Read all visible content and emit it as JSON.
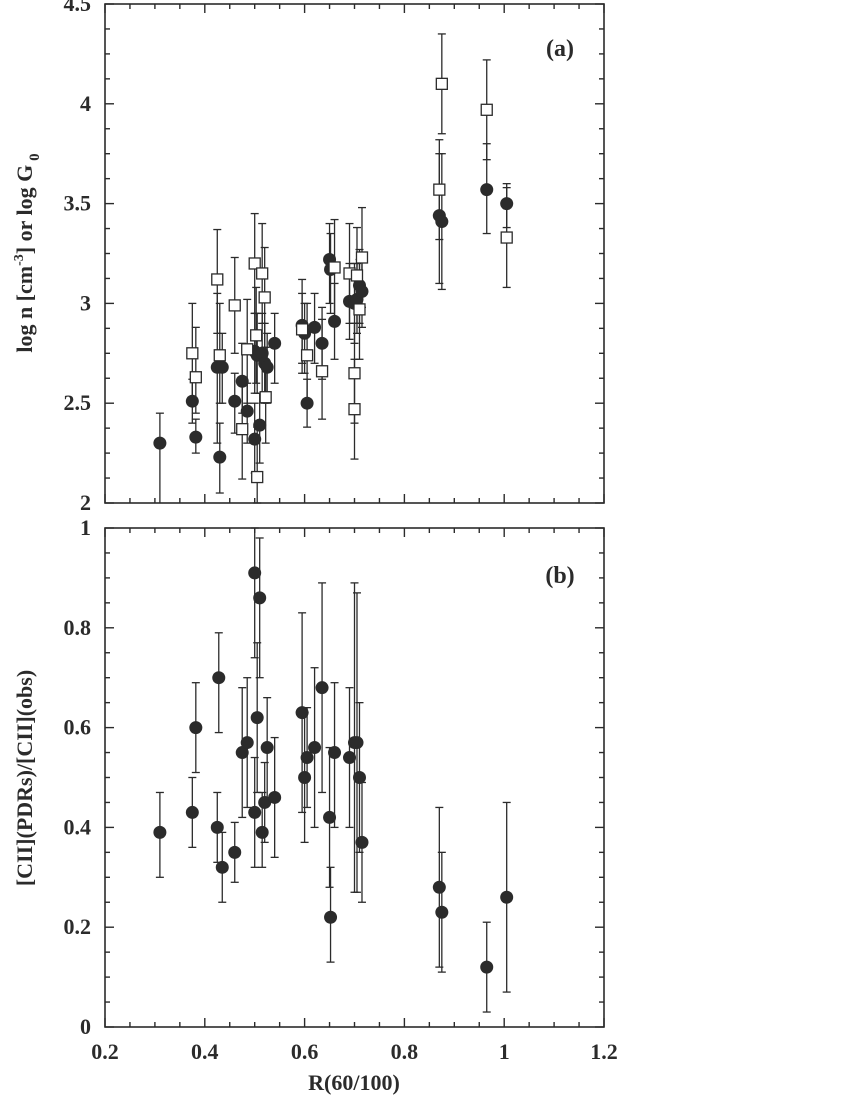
{
  "chart_data": [
    {
      "type": "scatter",
      "panel_tag": "(a)",
      "ylabel_main": "log n [cm",
      "ylabel_sup": "-3",
      "ylabel_mid": "] or log G",
      "ylabel_sub": "0",
      "xlim": [
        0.2,
        1.2
      ],
      "ylim": [
        2,
        4.5
      ],
      "yticks": [
        "2",
        "2.5",
        "3",
        "3.5",
        "4",
        "4.5"
      ],
      "grid": false,
      "series": [
        {
          "marker": "filled-circle",
          "points": [
            {
              "x": 0.31,
              "y": 2.3,
              "lo": 1.95,
              "hi": 2.45
            },
            {
              "x": 0.375,
              "y": 2.51,
              "lo": 2.4,
              "hi": 2.62
            },
            {
              "x": 0.382,
              "y": 2.33,
              "lo": 2.25,
              "hi": 2.42
            },
            {
              "x": 0.425,
              "y": 2.68,
              "lo": 2.3,
              "hi": 3.05
            },
            {
              "x": 0.43,
              "y": 2.23,
              "lo": 2.05,
              "hi": 2.4
            },
            {
              "x": 0.435,
              "y": 2.68,
              "lo": 2.5,
              "hi": 2.85
            },
            {
              "x": 0.46,
              "y": 2.51,
              "lo": 2.35,
              "hi": 2.65
            },
            {
              "x": 0.475,
              "y": 2.61,
              "lo": 2.45,
              "hi": 2.8
            },
            {
              "x": 0.485,
              "y": 2.46,
              "lo": 2.3,
              "hi": 2.6
            },
            {
              "x": 0.5,
              "y": 2.76,
              "lo": 2.55,
              "hi": 2.95
            },
            {
              "x": 0.5,
              "y": 2.32,
              "lo": 2.15,
              "hi": 2.5
            },
            {
              "x": 0.505,
              "y": 2.74,
              "lo": 2.55,
              "hi": 2.95
            },
            {
              "x": 0.51,
              "y": 2.39,
              "lo": 2.2,
              "hi": 2.55
            },
            {
              "x": 0.515,
              "y": 2.75,
              "lo": 2.55,
              "hi": 2.95
            },
            {
              "x": 0.52,
              "y": 2.7,
              "lo": 2.5,
              "hi": 2.9
            },
            {
              "x": 0.525,
              "y": 2.68,
              "lo": 2.5,
              "hi": 2.85
            },
            {
              "x": 0.54,
              "y": 2.8,
              "lo": 2.6,
              "hi": 2.95
            },
            {
              "x": 0.595,
              "y": 2.89,
              "lo": 2.7,
              "hi": 3.05
            },
            {
              "x": 0.6,
              "y": 2.85,
              "lo": 2.65,
              "hi": 3.0
            },
            {
              "x": 0.605,
              "y": 2.5,
              "lo": 2.38,
              "hi": 2.62
            },
            {
              "x": 0.62,
              "y": 2.88,
              "lo": 2.7,
              "hi": 3.05
            },
            {
              "x": 0.635,
              "y": 2.8,
              "lo": 2.62,
              "hi": 2.98
            },
            {
              "x": 0.65,
              "y": 3.22,
              "lo": 3.0,
              "hi": 3.4
            },
            {
              "x": 0.652,
              "y": 3.17,
              "lo": 2.95,
              "hi": 3.35
            },
            {
              "x": 0.66,
              "y": 2.91,
              "lo": 2.72,
              "hi": 3.1
            },
            {
              "x": 0.69,
              "y": 3.01,
              "lo": 2.82,
              "hi": 3.2
            },
            {
              "x": 0.7,
              "y": 3.0,
              "lo": 2.8,
              "hi": 3.2
            },
            {
              "x": 0.705,
              "y": 3.02,
              "lo": 2.85,
              "hi": 3.2
            },
            {
              "x": 0.71,
              "y": 3.09,
              "lo": 2.9,
              "hi": 3.27
            },
            {
              "x": 0.715,
              "y": 3.06,
              "lo": 2.88,
              "hi": 3.25
            },
            {
              "x": 0.87,
              "y": 3.44,
              "lo": 3.1,
              "hi": 3.75
            },
            {
              "x": 0.875,
              "y": 3.41,
              "lo": 3.07,
              "hi": 3.75
            },
            {
              "x": 0.965,
              "y": 3.57,
              "lo": 3.35,
              "hi": 3.8
            },
            {
              "x": 1.005,
              "y": 3.5,
              "lo": 3.38,
              "hi": 3.6
            }
          ]
        },
        {
          "marker": "open-square",
          "points": [
            {
              "x": 0.375,
              "y": 2.75,
              "lo": 2.5,
              "hi": 3.0
            },
            {
              "x": 0.382,
              "y": 2.63,
              "lo": 2.45,
              "hi": 2.88
            },
            {
              "x": 0.425,
              "y": 3.12,
              "lo": 2.85,
              "hi": 3.37
            },
            {
              "x": 0.43,
              "y": 2.74,
              "lo": 2.5,
              "hi": 3.0
            },
            {
              "x": 0.46,
              "y": 2.99,
              "lo": 2.75,
              "hi": 3.23
            },
            {
              "x": 0.475,
              "y": 2.37,
              "lo": 2.12,
              "hi": 2.62
            },
            {
              "x": 0.485,
              "y": 2.77,
              "lo": 2.5,
              "hi": 3.02
            },
            {
              "x": 0.5,
              "y": 3.2,
              "lo": 2.95,
              "hi": 3.45
            },
            {
              "x": 0.503,
              "y": 2.84,
              "lo": 2.6,
              "hi": 3.08
            },
            {
              "x": 0.505,
              "y": 2.13,
              "lo": 2.0,
              "hi": 2.38
            },
            {
              "x": 0.515,
              "y": 3.15,
              "lo": 2.9,
              "hi": 3.4
            },
            {
              "x": 0.52,
              "y": 3.03,
              "lo": 2.78,
              "hi": 3.28
            },
            {
              "x": 0.522,
              "y": 2.53,
              "lo": 2.3,
              "hi": 2.78
            },
            {
              "x": 0.595,
              "y": 2.87,
              "lo": 2.65,
              "hi": 3.12
            },
            {
              "x": 0.605,
              "y": 2.74,
              "lo": 2.5,
              "hi": 3.0
            },
            {
              "x": 0.635,
              "y": 2.66,
              "lo": 2.42,
              "hi": 2.92
            },
            {
              "x": 0.66,
              "y": 3.18,
              "lo": 2.93,
              "hi": 3.42
            },
            {
              "x": 0.69,
              "y": 3.15,
              "lo": 2.9,
              "hi": 3.4
            },
            {
              "x": 0.7,
              "y": 2.65,
              "lo": 2.4,
              "hi": 2.9
            },
            {
              "x": 0.7,
              "y": 2.47,
              "lo": 2.22,
              "hi": 2.72
            },
            {
              "x": 0.705,
              "y": 3.14,
              "lo": 2.9,
              "hi": 3.38
            },
            {
              "x": 0.71,
              "y": 2.97,
              "lo": 2.72,
              "hi": 3.22
            },
            {
              "x": 0.715,
              "y": 3.23,
              "lo": 2.98,
              "hi": 3.48
            },
            {
              "x": 0.87,
              "y": 3.57,
              "lo": 3.32,
              "hi": 3.82
            },
            {
              "x": 0.875,
              "y": 4.1,
              "lo": 3.85,
              "hi": 4.35
            },
            {
              "x": 0.965,
              "y": 3.97,
              "lo": 3.72,
              "hi": 4.22
            },
            {
              "x": 1.005,
              "y": 3.33,
              "lo": 3.08,
              "hi": 3.58
            }
          ]
        }
      ]
    },
    {
      "type": "scatter",
      "panel_tag": "(b)",
      "ylabel": "[CII](PDRs)/[CII](obs)",
      "xlabel": "R(60/100)",
      "xlim": [
        0.2,
        1.2
      ],
      "ylim": [
        0,
        1
      ],
      "xticks": [
        "0.2",
        "0.4",
        "0.6",
        "0.8",
        "1",
        "1.2"
      ],
      "yticks": [
        "0",
        "0.2",
        "0.4",
        "0.6",
        "0.8",
        "1"
      ],
      "grid": false,
      "series": [
        {
          "marker": "filled-circle",
          "points": [
            {
              "x": 0.31,
              "y": 0.39,
              "lo": 0.3,
              "hi": 0.47
            },
            {
              "x": 0.375,
              "y": 0.43,
              "lo": 0.36,
              "hi": 0.5
            },
            {
              "x": 0.382,
              "y": 0.6,
              "lo": 0.51,
              "hi": 0.69
            },
            {
              "x": 0.425,
              "y": 0.4,
              "lo": 0.33,
              "hi": 0.47
            },
            {
              "x": 0.428,
              "y": 0.7,
              "lo": 0.59,
              "hi": 0.79
            },
            {
              "x": 0.435,
              "y": 0.32,
              "lo": 0.25,
              "hi": 0.39
            },
            {
              "x": 0.46,
              "y": 0.35,
              "lo": 0.29,
              "hi": 0.41
            },
            {
              "x": 0.475,
              "y": 0.55,
              "lo": 0.42,
              "hi": 0.68
            },
            {
              "x": 0.485,
              "y": 0.57,
              "lo": 0.44,
              "hi": 0.7
            },
            {
              "x": 0.5,
              "y": 0.91,
              "lo": 0.74,
              "hi": 1.0
            },
            {
              "x": 0.5,
              "y": 0.43,
              "lo": 0.32,
              "hi": 0.54
            },
            {
              "x": 0.505,
              "y": 0.62,
              "lo": 0.47,
              "hi": 0.77
            },
            {
              "x": 0.51,
              "y": 0.86,
              "lo": 0.7,
              "hi": 0.98
            },
            {
              "x": 0.515,
              "y": 0.39,
              "lo": 0.32,
              "hi": 0.47
            },
            {
              "x": 0.52,
              "y": 0.45,
              "lo": 0.37,
              "hi": 0.53
            },
            {
              "x": 0.525,
              "y": 0.56,
              "lo": 0.46,
              "hi": 0.66
            },
            {
              "x": 0.54,
              "y": 0.46,
              "lo": 0.34,
              "hi": 0.58
            },
            {
              "x": 0.595,
              "y": 0.63,
              "lo": 0.43,
              "hi": 0.83
            },
            {
              "x": 0.6,
              "y": 0.5,
              "lo": 0.37,
              "hi": 0.63
            },
            {
              "x": 0.605,
              "y": 0.54,
              "lo": 0.44,
              "hi": 0.64
            },
            {
              "x": 0.62,
              "y": 0.56,
              "lo": 0.4,
              "hi": 0.72
            },
            {
              "x": 0.635,
              "y": 0.68,
              "lo": 0.47,
              "hi": 0.89
            },
            {
              "x": 0.65,
              "y": 0.42,
              "lo": 0.28,
              "hi": 0.56
            },
            {
              "x": 0.652,
              "y": 0.22,
              "lo": 0.13,
              "hi": 0.32
            },
            {
              "x": 0.66,
              "y": 0.55,
              "lo": 0.4,
              "hi": 0.69
            },
            {
              "x": 0.69,
              "y": 0.54,
              "lo": 0.4,
              "hi": 0.68
            },
            {
              "x": 0.7,
              "y": 0.57,
              "lo": 0.27,
              "hi": 0.89
            },
            {
              "x": 0.705,
              "y": 0.57,
              "lo": 0.27,
              "hi": 0.87
            },
            {
              "x": 0.71,
              "y": 0.5,
              "lo": 0.35,
              "hi": 0.65
            },
            {
              "x": 0.715,
              "y": 0.37,
              "lo": 0.25,
              "hi": 0.49
            },
            {
              "x": 0.87,
              "y": 0.28,
              "lo": 0.12,
              "hi": 0.44
            },
            {
              "x": 0.875,
              "y": 0.23,
              "lo": 0.11,
              "hi": 0.35
            },
            {
              "x": 0.965,
              "y": 0.12,
              "lo": 0.03,
              "hi": 0.21
            },
            {
              "x": 1.005,
              "y": 0.26,
              "lo": 0.07,
              "hi": 0.45
            }
          ]
        }
      ]
    }
  ]
}
